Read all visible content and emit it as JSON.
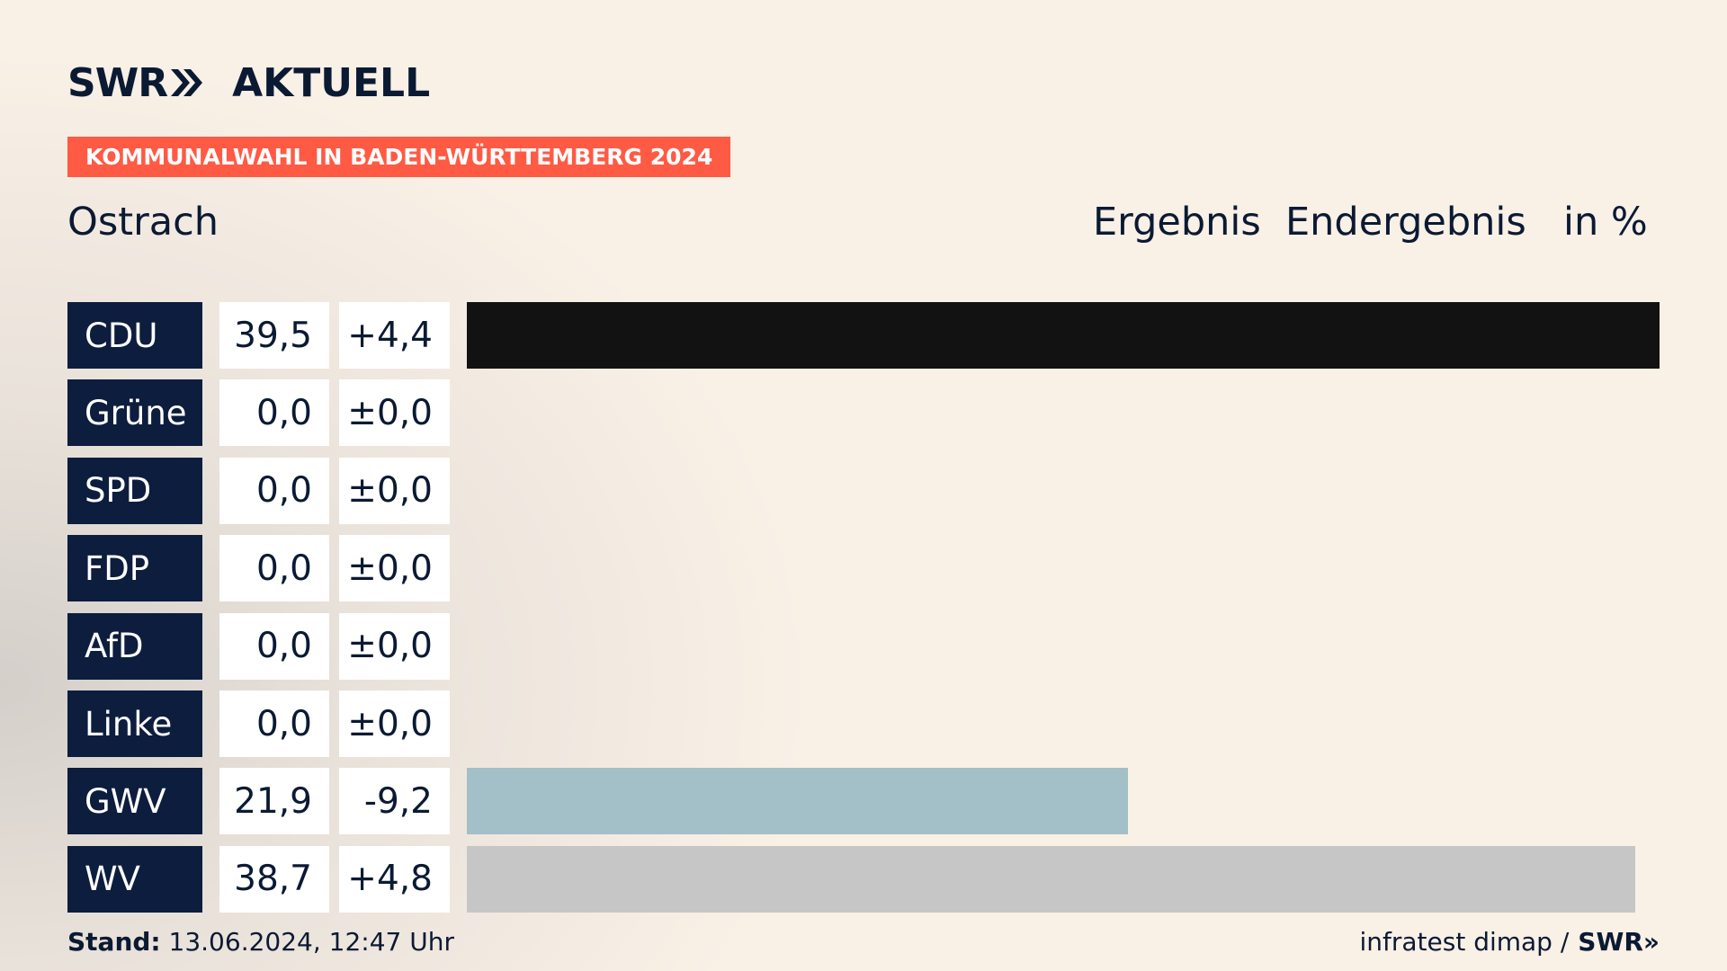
{
  "brand": {
    "swr": "SWR",
    "chevrons": "»",
    "aktuell": "AKTUELL"
  },
  "banner": "KOMMUNALWAHL IN BADEN-WÜRTTEMBERG 2024",
  "place": "Ostrach",
  "headers": {
    "ergebnis": "Ergebnis",
    "endergebnis": "Endergebnis",
    "unit": "in %"
  },
  "footer": {
    "stand_label": "Stand:",
    "stand_value": "13.06.2024, 12:47 Uhr",
    "source": "infratest dimap /",
    "source_brand": "SWR»"
  },
  "colors": {
    "navy": "#0d1d3e",
    "banner": "#ff5a44",
    "cdu": "#121212",
    "gwv": "#a3bfc7",
    "wv": "#c6c6c6"
  },
  "chart_data": {
    "type": "bar",
    "orientation": "horizontal",
    "max_value": 39.5,
    "rows": [
      {
        "party": "CDU",
        "value": 39.5,
        "value_label": "39,5",
        "diff_label": "+4,4",
        "color": "#121212"
      },
      {
        "party": "Grüne",
        "value": 0.0,
        "value_label": "0,0",
        "diff_label": "±0,0",
        "color": "#46962b"
      },
      {
        "party": "SPD",
        "value": 0.0,
        "value_label": "0,0",
        "diff_label": "±0,0",
        "color": "#e3000f"
      },
      {
        "party": "FDP",
        "value": 0.0,
        "value_label": "0,0",
        "diff_label": "±0,0",
        "color": "#ffed00"
      },
      {
        "party": "AfD",
        "value": 0.0,
        "value_label": "0,0",
        "diff_label": "±0,0",
        "color": "#009ee0"
      },
      {
        "party": "Linke",
        "value": 0.0,
        "value_label": "0,0",
        "diff_label": "±0,0",
        "color": "#be3075"
      },
      {
        "party": "GWV",
        "value": 21.9,
        "value_label": "21,9",
        "diff_label": "-9,2",
        "color": "#a3bfc7"
      },
      {
        "party": "WV",
        "value": 38.7,
        "value_label": "38,7",
        "diff_label": "+4,8",
        "color": "#c6c6c6"
      }
    ]
  }
}
